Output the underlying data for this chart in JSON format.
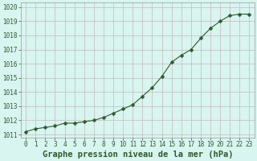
{
  "x": [
    0,
    1,
    2,
    3,
    4,
    5,
    6,
    7,
    8,
    9,
    10,
    11,
    12,
    13,
    14,
    15,
    16,
    17,
    18,
    19,
    20,
    21,
    22,
    23
  ],
  "y": [
    1011.2,
    1011.4,
    1011.5,
    1011.6,
    1011.8,
    1011.8,
    1011.9,
    1012.0,
    1012.2,
    1012.5,
    1012.8,
    1013.1,
    1013.7,
    1014.3,
    1015.1,
    1016.1,
    1016.6,
    1017.0,
    1017.8,
    1018.5,
    1019.0,
    1019.4,
    1019.5,
    1019.5
  ],
  "line_color": "#2d5a2d",
  "marker": "D",
  "marker_size": 2.5,
  "background_color": "#d8f5f0",
  "grid_color": "#c8b8b8",
  "xlabel": "Graphe pression niveau de la mer (hPa)",
  "xlabel_color": "#2d5a2d",
  "xlabel_fontsize": 7.5,
  "tick_color": "#2d5a2d",
  "tick_fontsize": 5.5,
  "ylim": [
    1010.8,
    1020.3
  ],
  "yticks": [
    1011,
    1012,
    1013,
    1014,
    1015,
    1016,
    1017,
    1018,
    1019,
    1020
  ],
  "xlim": [
    -0.5,
    23.5
  ],
  "xticks": [
    0,
    1,
    2,
    3,
    4,
    5,
    6,
    7,
    8,
    9,
    10,
    11,
    12,
    13,
    14,
    15,
    16,
    17,
    18,
    19,
    20,
    21,
    22,
    23
  ],
  "line_width": 0.8,
  "spine_color": "#999999"
}
